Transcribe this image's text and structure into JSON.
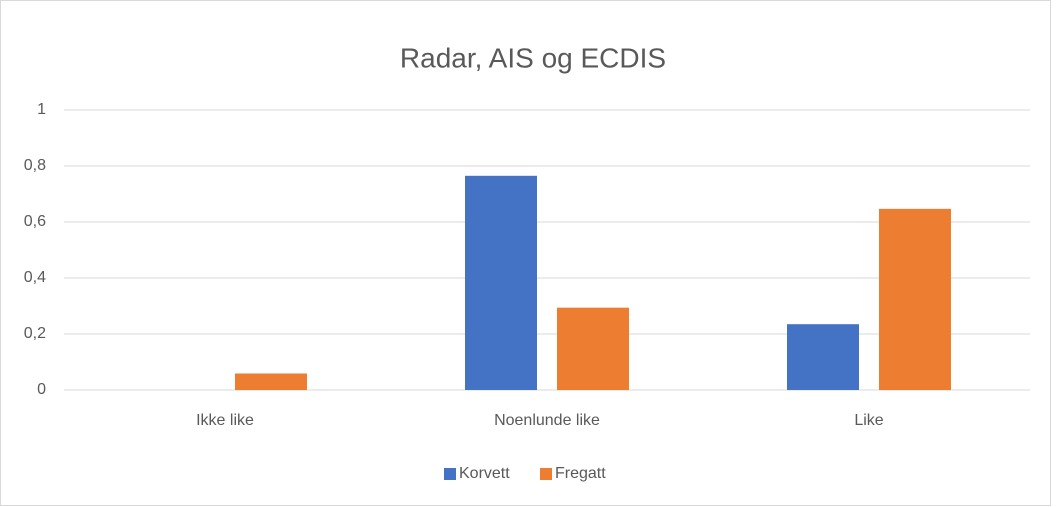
{
  "chart_data": {
    "type": "bar",
    "title": "Radar, AIS og ECDIS",
    "categories": [
      "Ikke like",
      "Noenlunde like",
      "Like"
    ],
    "series": [
      {
        "name": "Korvett",
        "color": "#4472c4",
        "values": [
          0,
          0.765,
          0.235
        ]
      },
      {
        "name": "Fregatt",
        "color": "#ed7d31",
        "values": [
          0.059,
          0.294,
          0.647
        ]
      }
    ],
    "ylim": [
      0,
      1
    ],
    "yticks": [
      0,
      {
        "value": 0.2,
        "label": "0,2"
      },
      {
        "value": 0.4,
        "label": "0,4"
      },
      {
        "value": 0.6,
        "label": "0,6"
      },
      {
        "value": 0.8,
        "label": "0,8"
      },
      1
    ],
    "grid": true,
    "legend": "bottom"
  }
}
